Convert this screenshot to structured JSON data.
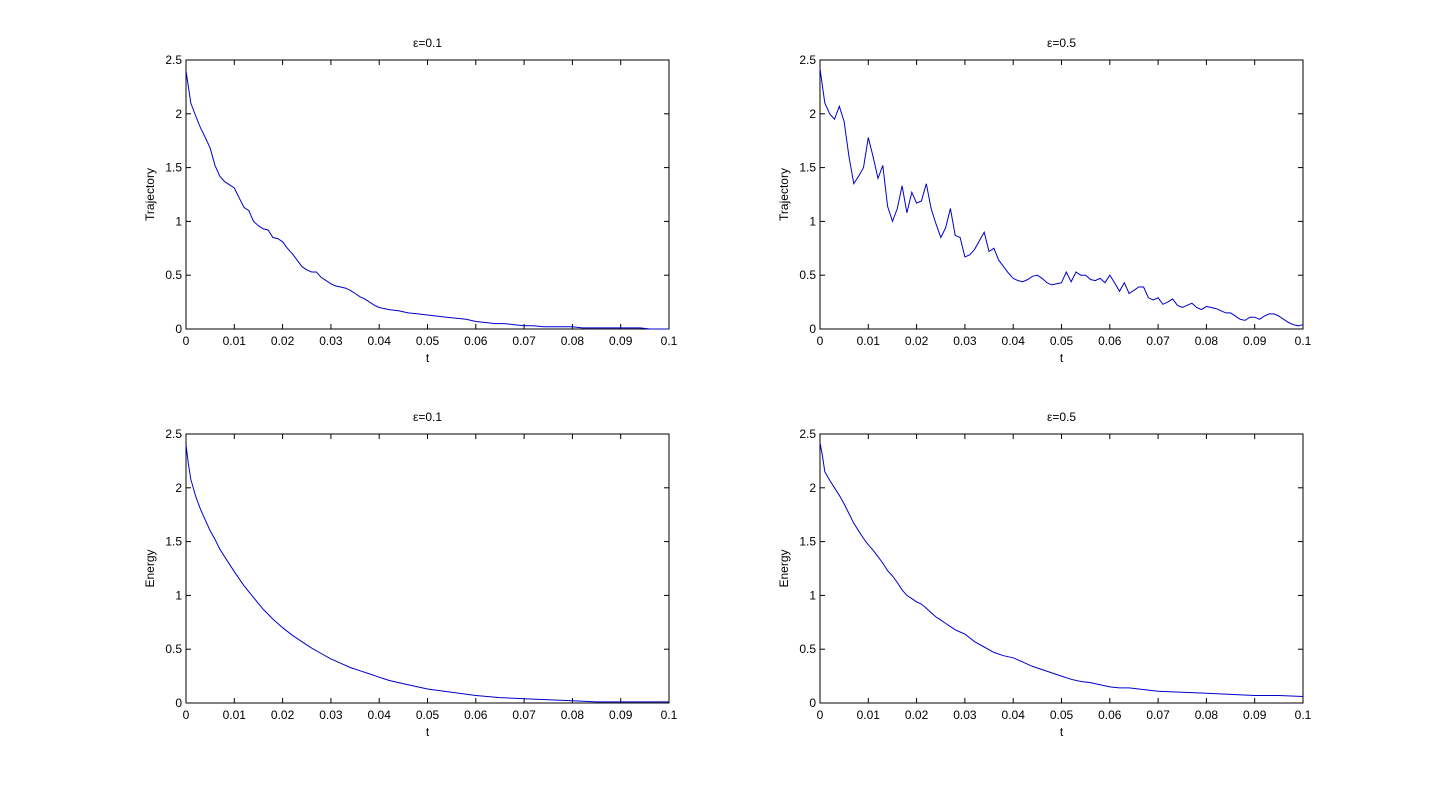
{
  "chart_data": [
    {
      "type": "line",
      "title": "ε=0.1",
      "xlabel": "t",
      "ylabel": "Trajectory",
      "xlim": [
        0,
        0.1
      ],
      "ylim": [
        0,
        2.5
      ],
      "xticks": [
        "0",
        "0.01",
        "0.02",
        "0.03",
        "0.04",
        "0.05",
        "0.06",
        "0.07",
        "0.08",
        "0.09",
        "0.1"
      ],
      "yticks": [
        "0",
        "0.5",
        "1",
        "1.5",
        "2",
        "2.5"
      ],
      "grid": false,
      "series": [
        {
          "x": [
            0,
            0.001,
            0.002,
            0.003,
            0.004,
            0.005,
            0.006,
            0.007,
            0.008,
            0.009,
            0.01,
            0.011,
            0.012,
            0.013,
            0.014,
            0.015,
            0.016,
            0.017,
            0.018,
            0.019,
            0.02,
            0.021,
            0.022,
            0.023,
            0.024,
            0.025,
            0.026,
            0.027,
            0.028,
            0.029,
            0.03,
            0.031,
            0.032,
            0.033,
            0.034,
            0.035,
            0.036,
            0.037,
            0.038,
            0.039,
            0.04,
            0.042,
            0.044,
            0.046,
            0.048,
            0.05,
            0.052,
            0.054,
            0.056,
            0.058,
            0.06,
            0.062,
            0.064,
            0.066,
            0.068,
            0.07,
            0.072,
            0.074,
            0.076,
            0.078,
            0.08,
            0.082,
            0.084,
            0.086,
            0.088,
            0.09,
            0.092,
            0.094,
            0.096,
            0.098,
            0.1
          ],
          "values": [
            2.4,
            2.1,
            1.98,
            1.87,
            1.78,
            1.68,
            1.52,
            1.42,
            1.37,
            1.34,
            1.31,
            1.22,
            1.13,
            1.1,
            1.0,
            0.96,
            0.93,
            0.92,
            0.85,
            0.84,
            0.81,
            0.75,
            0.7,
            0.64,
            0.58,
            0.55,
            0.53,
            0.53,
            0.48,
            0.45,
            0.42,
            0.4,
            0.39,
            0.38,
            0.36,
            0.33,
            0.3,
            0.28,
            0.25,
            0.22,
            0.2,
            0.18,
            0.17,
            0.15,
            0.14,
            0.13,
            0.12,
            0.11,
            0.1,
            0.09,
            0.07,
            0.06,
            0.05,
            0.05,
            0.04,
            0.03,
            0.03,
            0.02,
            0.02,
            0.02,
            0.02,
            0.01,
            0.01,
            0.01,
            0.01,
            0.01,
            0.01,
            0.01,
            0.0,
            0.0,
            0.0
          ]
        }
      ]
    },
    {
      "type": "line",
      "title": "ε=0.5",
      "xlabel": "t",
      "ylabel": "Trajectory",
      "xlim": [
        0,
        0.1
      ],
      "ylim": [
        0,
        2.5
      ],
      "xticks": [
        "0",
        "0.01",
        "0.02",
        "0.03",
        "0.04",
        "0.05",
        "0.06",
        "0.07",
        "0.08",
        "0.09",
        "0.1"
      ],
      "yticks": [
        "0",
        "0.5",
        "1",
        "1.5",
        "2",
        "2.5"
      ],
      "grid": false,
      "series": [
        {
          "x": [
            0,
            0.001,
            0.002,
            0.003,
            0.004,
            0.005,
            0.006,
            0.007,
            0.008,
            0.009,
            0.01,
            0.011,
            0.012,
            0.013,
            0.014,
            0.015,
            0.016,
            0.017,
            0.018,
            0.019,
            0.02,
            0.021,
            0.022,
            0.023,
            0.024,
            0.025,
            0.026,
            0.027,
            0.028,
            0.029,
            0.03,
            0.031,
            0.032,
            0.033,
            0.034,
            0.035,
            0.036,
            0.037,
            0.038,
            0.039,
            0.04,
            0.041,
            0.042,
            0.043,
            0.044,
            0.045,
            0.046,
            0.047,
            0.048,
            0.049,
            0.05,
            0.051,
            0.052,
            0.053,
            0.054,
            0.055,
            0.056,
            0.057,
            0.058,
            0.059,
            0.06,
            0.061,
            0.062,
            0.063,
            0.064,
            0.065,
            0.066,
            0.067,
            0.068,
            0.069,
            0.07,
            0.071,
            0.072,
            0.073,
            0.074,
            0.075,
            0.076,
            0.077,
            0.078,
            0.079,
            0.08,
            0.081,
            0.082,
            0.083,
            0.084,
            0.085,
            0.086,
            0.087,
            0.088,
            0.089,
            0.09,
            0.091,
            0.092,
            0.093,
            0.094,
            0.095,
            0.096,
            0.097,
            0.098,
            0.099,
            0.1
          ],
          "values": [
            2.42,
            2.1,
            2.0,
            1.95,
            2.07,
            1.93,
            1.6,
            1.35,
            1.42,
            1.5,
            1.78,
            1.6,
            1.4,
            1.52,
            1.14,
            1.0,
            1.12,
            1.33,
            1.08,
            1.27,
            1.17,
            1.19,
            1.35,
            1.12,
            0.98,
            0.85,
            0.94,
            1.12,
            0.87,
            0.85,
            0.67,
            0.69,
            0.74,
            0.82,
            0.9,
            0.72,
            0.75,
            0.64,
            0.58,
            0.52,
            0.47,
            0.45,
            0.44,
            0.46,
            0.49,
            0.5,
            0.47,
            0.43,
            0.41,
            0.42,
            0.43,
            0.53,
            0.44,
            0.53,
            0.5,
            0.5,
            0.46,
            0.45,
            0.47,
            0.43,
            0.5,
            0.43,
            0.35,
            0.43,
            0.33,
            0.36,
            0.39,
            0.39,
            0.29,
            0.27,
            0.29,
            0.23,
            0.25,
            0.28,
            0.22,
            0.2,
            0.22,
            0.24,
            0.2,
            0.18,
            0.21,
            0.2,
            0.19,
            0.17,
            0.15,
            0.15,
            0.12,
            0.09,
            0.08,
            0.11,
            0.11,
            0.09,
            0.12,
            0.14,
            0.14,
            0.12,
            0.09,
            0.06,
            0.04,
            0.03,
            0.04
          ]
        }
      ]
    },
    {
      "type": "line",
      "title": "ε=0.1",
      "xlabel": "t",
      "ylabel": "Energy",
      "xlim": [
        0,
        0.1
      ],
      "ylim": [
        0,
        2.5
      ],
      "xticks": [
        "0",
        "0.01",
        "0.02",
        "0.03",
        "0.04",
        "0.05",
        "0.06",
        "0.07",
        "0.08",
        "0.09",
        "0.1"
      ],
      "yticks": [
        "0",
        "0.5",
        "1",
        "1.5",
        "2",
        "2.5"
      ],
      "grid": false,
      "series": [
        {
          "x": [
            0,
            0.0005,
            0.001,
            0.002,
            0.003,
            0.004,
            0.005,
            0.006,
            0.007,
            0.008,
            0.009,
            0.01,
            0.012,
            0.014,
            0.016,
            0.018,
            0.02,
            0.022,
            0.024,
            0.026,
            0.028,
            0.03,
            0.032,
            0.034,
            0.036,
            0.038,
            0.04,
            0.042,
            0.044,
            0.046,
            0.048,
            0.05,
            0.055,
            0.06,
            0.065,
            0.07,
            0.075,
            0.08,
            0.085,
            0.09,
            0.095,
            0.1
          ],
          "values": [
            2.4,
            2.22,
            2.08,
            1.92,
            1.8,
            1.7,
            1.6,
            1.52,
            1.43,
            1.36,
            1.29,
            1.22,
            1.09,
            0.98,
            0.87,
            0.78,
            0.7,
            0.63,
            0.57,
            0.51,
            0.46,
            0.41,
            0.37,
            0.33,
            0.3,
            0.27,
            0.24,
            0.21,
            0.19,
            0.17,
            0.15,
            0.13,
            0.1,
            0.07,
            0.05,
            0.04,
            0.03,
            0.02,
            0.01,
            0.01,
            0.01,
            0.01
          ]
        }
      ]
    },
    {
      "type": "line",
      "title": "ε=0.5",
      "xlabel": "t",
      "ylabel": "Energy",
      "xlim": [
        0,
        0.1
      ],
      "ylim": [
        0,
        2.5
      ],
      "xticks": [
        "0",
        "0.01",
        "0.02",
        "0.03",
        "0.04",
        "0.05",
        "0.06",
        "0.07",
        "0.08",
        "0.09",
        "0.1"
      ],
      "yticks": [
        "0",
        "0.5",
        "1",
        "1.5",
        "2",
        "2.5"
      ],
      "grid": false,
      "series": [
        {
          "x": [
            0,
            0.0005,
            0.001,
            0.002,
            0.003,
            0.004,
            0.005,
            0.006,
            0.007,
            0.008,
            0.009,
            0.01,
            0.011,
            0.012,
            0.013,
            0.014,
            0.015,
            0.016,
            0.017,
            0.018,
            0.019,
            0.02,
            0.021,
            0.022,
            0.023,
            0.024,
            0.025,
            0.026,
            0.027,
            0.028,
            0.029,
            0.03,
            0.032,
            0.034,
            0.036,
            0.038,
            0.04,
            0.042,
            0.044,
            0.046,
            0.048,
            0.05,
            0.052,
            0.054,
            0.056,
            0.058,
            0.06,
            0.062,
            0.064,
            0.066,
            0.068,
            0.07,
            0.075,
            0.08,
            0.085,
            0.09,
            0.095,
            0.1
          ],
          "values": [
            2.42,
            2.3,
            2.15,
            2.07,
            2.0,
            1.93,
            1.85,
            1.76,
            1.67,
            1.6,
            1.53,
            1.47,
            1.42,
            1.36,
            1.3,
            1.23,
            1.18,
            1.12,
            1.05,
            1.0,
            0.97,
            0.94,
            0.92,
            0.88,
            0.84,
            0.8,
            0.77,
            0.74,
            0.71,
            0.68,
            0.66,
            0.64,
            0.57,
            0.52,
            0.47,
            0.44,
            0.42,
            0.38,
            0.34,
            0.31,
            0.28,
            0.25,
            0.22,
            0.2,
            0.19,
            0.17,
            0.15,
            0.14,
            0.14,
            0.13,
            0.12,
            0.11,
            0.1,
            0.09,
            0.08,
            0.07,
            0.07,
            0.06
          ]
        }
      ]
    }
  ]
}
